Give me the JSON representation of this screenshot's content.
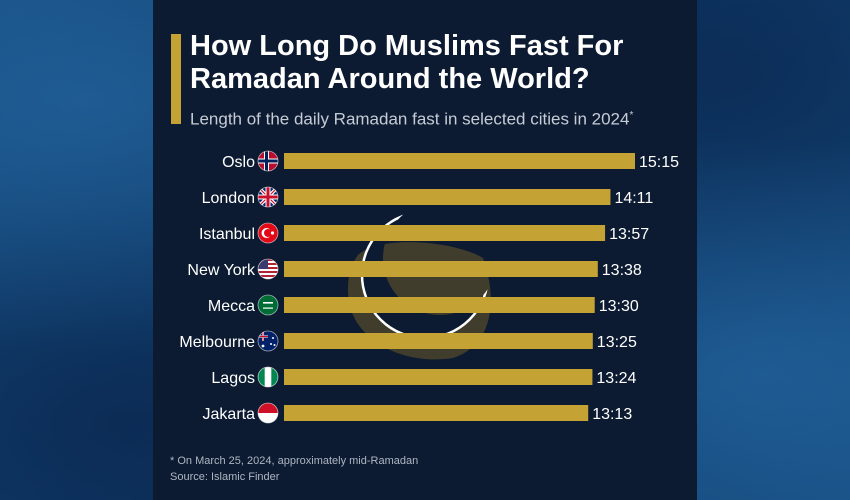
{
  "header": {
    "title_line1": "How Long Do Muslims Fast For",
    "title_line2": "Ramadan Around the World?",
    "subtitle": "Length of the daily Ramadan fast in selected cities in 2024",
    "subtitle_mark": "*"
  },
  "footer": {
    "note": "* On March 25, 2024, approximately mid-Ramadan",
    "source": "Source: Islamic Finder"
  },
  "colors": {
    "bar": "#c4a233",
    "panel": "#0c1b31",
    "text": "#ffffff",
    "moon": "#0c1b31",
    "moon_glow": "#6b5a2a"
  },
  "decor": {
    "icon": "crescent-moon-icon"
  },
  "chart_data": {
    "type": "bar",
    "orientation": "horizontal",
    "title": "How Long Do Muslims Fast For Ramadan Around the World?",
    "subtitle": "Length of the daily Ramadan fast in selected cities in 2024*",
    "categories": [
      "Oslo",
      "London",
      "Istanbul",
      "New York",
      "Mecca",
      "Melbourne",
      "Lagos",
      "Jakarta"
    ],
    "flags": [
      "norway-flag-icon",
      "uk-flag-icon",
      "turkey-flag-icon",
      "usa-flag-icon",
      "saudi-arabia-flag-icon",
      "australia-flag-icon",
      "nigeria-flag-icon",
      "indonesia-flag-icon"
    ],
    "values": [
      915,
      851,
      837,
      818,
      810,
      805,
      804,
      793
    ],
    "labels": [
      "15:15",
      "14:11",
      "13:57",
      "13:38",
      "13:30",
      "13:25",
      "13:24",
      "13:13"
    ],
    "unit": "minutes",
    "grid": false,
    "legend": "none"
  }
}
